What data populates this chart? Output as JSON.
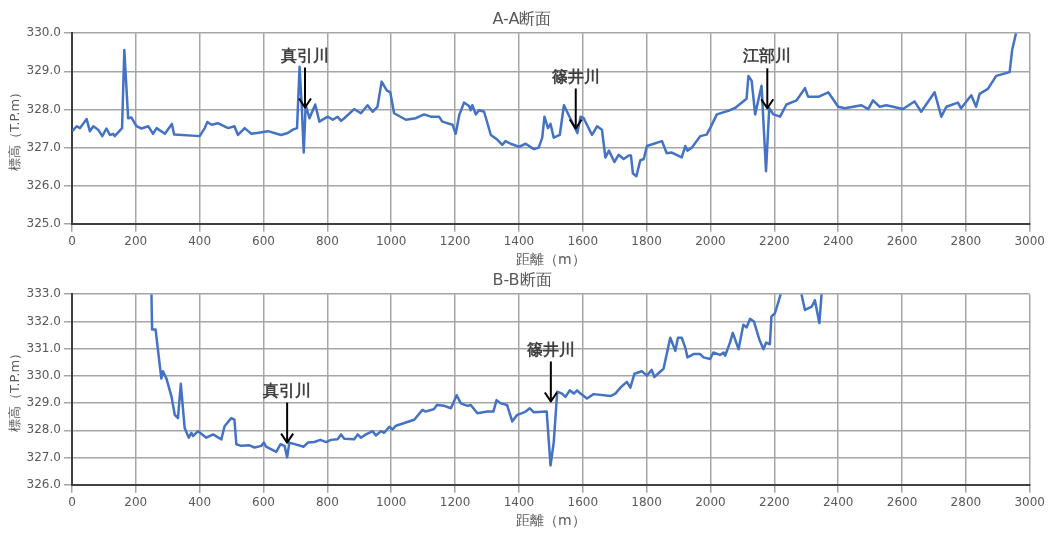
{
  "chart_data": [
    {
      "type": "line",
      "title": "A-A断面",
      "xlabel": "距離（m）",
      "ylabel": "標高（T.P.m）",
      "xlim": [
        0,
        3000
      ],
      "xticks": [
        0,
        200,
        400,
        600,
        800,
        1000,
        1200,
        1400,
        1600,
        1800,
        2000,
        2200,
        2400,
        2600,
        2800,
        3000
      ],
      "ylim": [
        325,
        330
      ],
      "yticks": [
        {
          "value": 325,
          "label": "325.0"
        },
        {
          "value": 326,
          "label": "326.0"
        },
        {
          "value": 327,
          "label": "327.0"
        },
        {
          "value": 328,
          "label": "328.0"
        },
        {
          "value": 329,
          "label": "329.0"
        },
        {
          "value": 330,
          "label": "330.0"
        }
      ],
      "grid": true,
      "legend": false,
      "marker": "none",
      "line_style": "solid",
      "annotations": [
        {
          "text": "真引川",
          "x": 730,
          "y": 328.05
        },
        {
          "text": "篠井川",
          "x": 1578,
          "y": 327.5
        },
        {
          "text": "江部川",
          "x": 2178,
          "y": 328.03
        }
      ],
      "series": [
        {
          "color": "#4472c4",
          "x": [
            1,
            15,
            25,
            46,
            56,
            67,
            82,
            95,
            108,
            119,
            129,
            134,
            157,
            164,
            176,
            186,
            202,
            218,
            239,
            254,
            265,
            291,
            313,
            320,
            400,
            416,
            424,
            437,
            457,
            489,
            509,
            520,
            541,
            562,
            614,
            655,
            676,
            692,
            705,
            713,
            720,
            726,
            732,
            744,
            762,
            775,
            801,
            817,
            832,
            843,
            853,
            884,
            905,
            926,
            942,
            957,
            970,
            986,
            997,
            1009,
            1046,
            1077,
            1103,
            1124,
            1150,
            1160,
            1192,
            1202,
            1213,
            1228,
            1244,
            1249,
            1254,
            1265,
            1275,
            1291,
            1312,
            1332,
            1348,
            1358,
            1374,
            1400,
            1421,
            1447,
            1462,
            1473,
            1480,
            1491,
            1499,
            1509,
            1528,
            1541,
            1583,
            1593,
            1603,
            1629,
            1645,
            1660,
            1671,
            1682,
            1699,
            1712,
            1728,
            1744,
            1751,
            1757,
            1768,
            1780,
            1791,
            1801,
            1848,
            1863,
            1879,
            1910,
            1921,
            1928,
            1942,
            1968,
            1988,
            1999,
            2020,
            2061,
            2077,
            2113,
            2119,
            2129,
            2140,
            2160,
            2174,
            2184,
            2197,
            2218,
            2238,
            2270,
            2296,
            2306,
            2338,
            2369,
            2400,
            2421,
            2473,
            2494,
            2509,
            2530,
            2551,
            2603,
            2639,
            2660,
            2702,
            2723,
            2739,
            2775,
            2785,
            2817,
            2832,
            2843,
            2869,
            2895,
            2937,
            2945,
            2957
          ],
          "values": [
            327.43,
            327.56,
            327.51,
            327.75,
            327.43,
            327.56,
            327.47,
            327.3,
            327.5,
            327.33,
            327.36,
            327.3,
            327.51,
            329.56,
            327.77,
            327.79,
            327.56,
            327.5,
            327.56,
            327.36,
            327.51,
            327.36,
            327.62,
            327.34,
            327.3,
            327.51,
            327.67,
            327.6,
            327.64,
            327.51,
            327.56,
            327.33,
            327.51,
            327.36,
            327.43,
            327.33,
            327.38,
            327.47,
            327.51,
            329.12,
            328.04,
            326.87,
            328.11,
            327.77,
            328.13,
            327.68,
            327.81,
            327.73,
            327.81,
            327.7,
            327.77,
            328.01,
            327.9,
            328.11,
            327.94,
            328.07,
            328.73,
            328.5,
            328.45,
            327.9,
            327.73,
            327.77,
            327.87,
            327.81,
            327.81,
            327.68,
            327.6,
            327.36,
            327.85,
            328.18,
            328.09,
            327.98,
            328.11,
            327.87,
            327.98,
            327.94,
            327.33,
            327.21,
            327.07,
            327.17,
            327.1,
            327.02,
            327.1,
            326.96,
            327,
            327.26,
            327.81,
            327.51,
            327.62,
            327.26,
            327.33,
            328.11,
            327.38,
            327.81,
            327.77,
            327.33,
            327.56,
            327.47,
            326.74,
            326.92,
            326.62,
            326.81,
            326.7,
            326.79,
            326.79,
            326.32,
            326.25,
            326.66,
            326.7,
            327.04,
            327.17,
            326.85,
            326.87,
            326.74,
            327.04,
            326.92,
            327,
            327.3,
            327.34,
            327.51,
            327.87,
            327.98,
            328.04,
            328.28,
            328.88,
            328.75,
            327.87,
            328.62,
            326.38,
            328.03,
            327.87,
            327.81,
            328.13,
            328.24,
            328.56,
            328.33,
            328.33,
            328.45,
            328.07,
            328.03,
            328.11,
            328.01,
            328.24,
            328.07,
            328.11,
            328.01,
            328.21,
            327.94,
            328.45,
            327.81,
            328.07,
            328.18,
            328.03,
            328.37,
            328.07,
            328.41,
            328.54,
            328.88,
            328.98,
            329.56,
            330
          ]
        }
      ]
    },
    {
      "type": "line",
      "title": "B-B断面",
      "xlabel": "距離（m）",
      "ylabel": "標高（T.P.m）",
      "xlim": [
        0,
        3000
      ],
      "xticks": [
        0,
        200,
        400,
        600,
        800,
        1000,
        1200,
        1400,
        1600,
        1800,
        2000,
        2200,
        2400,
        2600,
        2800,
        3000
      ],
      "ylim": [
        326,
        333
      ],
      "yticks": [
        {
          "value": 326,
          "label": "326.0"
        },
        {
          "value": 327,
          "label": "327.0"
        },
        {
          "value": 328,
          "label": "328.0"
        },
        {
          "value": 329,
          "label": "329.0"
        },
        {
          "value": 330,
          "label": "330.0"
        },
        {
          "value": 331,
          "label": "331.0"
        },
        {
          "value": 332,
          "label": "332.0"
        },
        {
          "value": 333,
          "label": "333.0"
        }
      ],
      "grid": true,
      "legend": false,
      "marker": "none",
      "line_style": "solid",
      "annotations": [
        {
          "text": "真引川",
          "x": 674,
          "y": 327.55
        },
        {
          "text": "篠井川",
          "x": 1500,
          "y": 329.06
        }
      ],
      "series": [
        {
          "color": "#4472c4",
          "x": [
            249,
            251,
            262,
            280,
            285,
            296,
            312,
            322,
            332,
            341,
            353,
            366,
            374,
            379,
            395,
            421,
            442,
            468,
            478,
            499,
            509,
            515,
            530,
            556,
            572,
            593,
            601,
            608,
            640,
            653,
            666,
            674,
            681,
            726,
            739,
            759,
            778,
            796,
            811,
            832,
            843,
            853,
            884,
            895,
            905,
            921,
            942,
            952,
            968,
            978,
            994,
            1004,
            1015,
            1041,
            1072,
            1098,
            1108,
            1134,
            1143,
            1166,
            1187,
            1205,
            1218,
            1239,
            1249,
            1270,
            1301,
            1320,
            1330,
            1343,
            1363,
            1379,
            1395,
            1410,
            1421,
            1434,
            1447,
            1487,
            1499,
            1509,
            1520,
            1535,
            1546,
            1559,
            1572,
            1582,
            1593,
            1613,
            1634,
            1687,
            1702,
            1718,
            1738,
            1749,
            1762,
            1785,
            1801,
            1816,
            1824,
            1853,
            1874,
            1890,
            1898,
            1910,
            1921,
            1928,
            1947,
            1968,
            1978,
            1999,
            2009,
            2030,
            2041,
            2046,
            2061,
            2070,
            2088,
            2103,
            2113,
            2124,
            2136,
            2153,
            2166,
            2174,
            2186,
            2191,
            2202,
            2220,
            2250,
            2285,
            2296,
            2317,
            2327,
            2341,
            2348
          ],
          "values": [
            333,
            331.7,
            331.7,
            329.9,
            330.17,
            329.9,
            329.23,
            328.57,
            328.45,
            329.71,
            328.09,
            327.73,
            327.91,
            327.79,
            327.97,
            327.73,
            327.85,
            327.67,
            328.15,
            328.45,
            328.39,
            327.49,
            327.43,
            327.45,
            327.37,
            327.43,
            327.55,
            327.4,
            327.21,
            327.49,
            327.43,
            327.01,
            327.55,
            327.4,
            327.55,
            327.57,
            327.65,
            327.57,
            327.65,
            327.67,
            327.85,
            327.69,
            327.67,
            327.85,
            327.73,
            327.85,
            327.97,
            327.81,
            327.97,
            327.91,
            328.13,
            328.03,
            328.17,
            328.27,
            328.39,
            328.75,
            328.69,
            328.78,
            328.93,
            328.9,
            328.81,
            329.29,
            328.99,
            328.9,
            328.93,
            328.63,
            328.69,
            328.69,
            329.11,
            328.99,
            328.93,
            328.33,
            328.57,
            328.63,
            328.69,
            328.81,
            328.66,
            328.69,
            326.71,
            327.55,
            329.42,
            329.35,
            329.23,
            329.47,
            329.35,
            329.47,
            329.35,
            329.17,
            329.33,
            329.26,
            329.35,
            329.57,
            329.78,
            329.57,
            330.08,
            330.17,
            330.01,
            330.22,
            329.96,
            330.26,
            331.4,
            330.92,
            331.4,
            331.4,
            331.04,
            330.68,
            330.8,
            330.8,
            330.68,
            330.62,
            330.86,
            330.77,
            330.86,
            330.74,
            331.22,
            331.58,
            330.98,
            331.88,
            331.78,
            332.1,
            332,
            331.34,
            330.98,
            331.22,
            331.16,
            332.18,
            332.3,
            333,
            null,
            333,
            332.42,
            332.54,
            332.78,
            331.94,
            333
          ]
        }
      ]
    }
  ]
}
